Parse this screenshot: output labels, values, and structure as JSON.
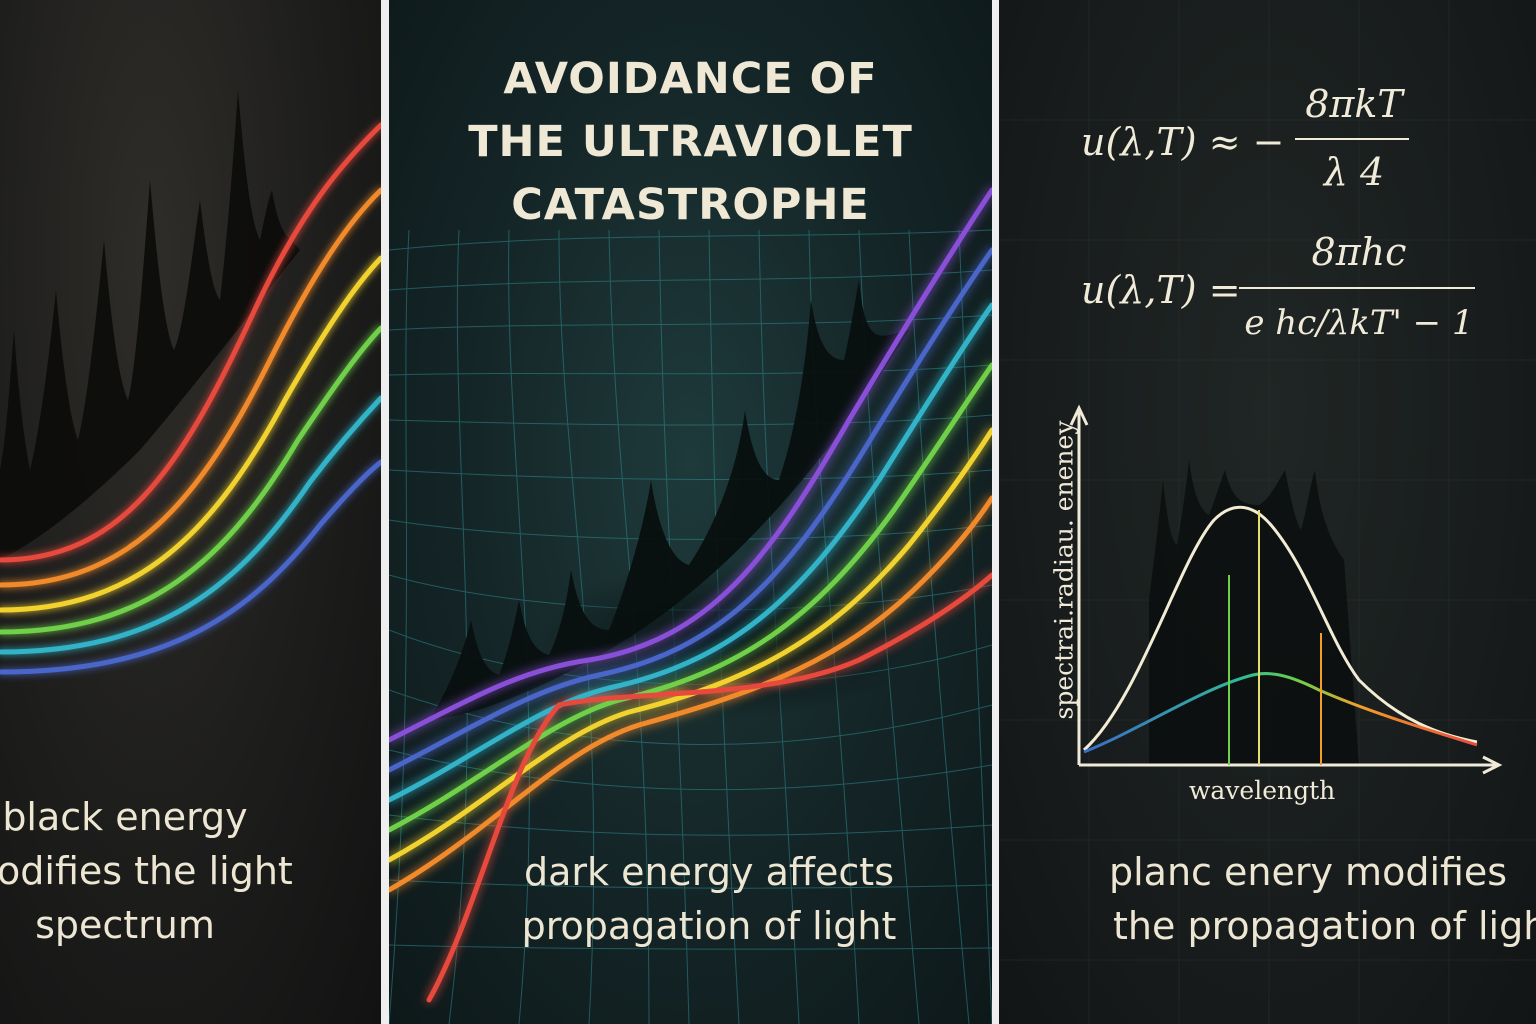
{
  "panels": {
    "left": {
      "caption_lines": [
        "black energy",
        "modifies the light",
        "spectrum"
      ]
    },
    "middle": {
      "title_lines": [
        "AVOIDANCE OF",
        "THE ULTRAVIOLET",
        "CATASTROPHE"
      ],
      "caption_lines": [
        "dark energy affects",
        "propagation of light"
      ]
    },
    "right": {
      "equation1": {
        "lhs": "u(λ,T) ≈ −",
        "numerator": "8πkT",
        "denominator": "λ 4"
      },
      "equation2": {
        "lhs": "u(λ,T) =",
        "numerator": "8πhc",
        "denominator": "e hc/λkT' − 1"
      },
      "graph": {
        "y_axis_label": "spectrai.radiau. eneney",
        "x_axis_label": "wavelength"
      },
      "caption_lines": [
        "planc enery modifies",
        "the propagation of light"
      ]
    }
  },
  "colors": {
    "rainbow": [
      "#e8493e",
      "#f08a2a",
      "#f2d22e",
      "#6fd04a",
      "#33b3c8",
      "#4a66c8",
      "#8a4fd8"
    ],
    "text": "#ece6d2",
    "divider": "#f4f4f4"
  }
}
